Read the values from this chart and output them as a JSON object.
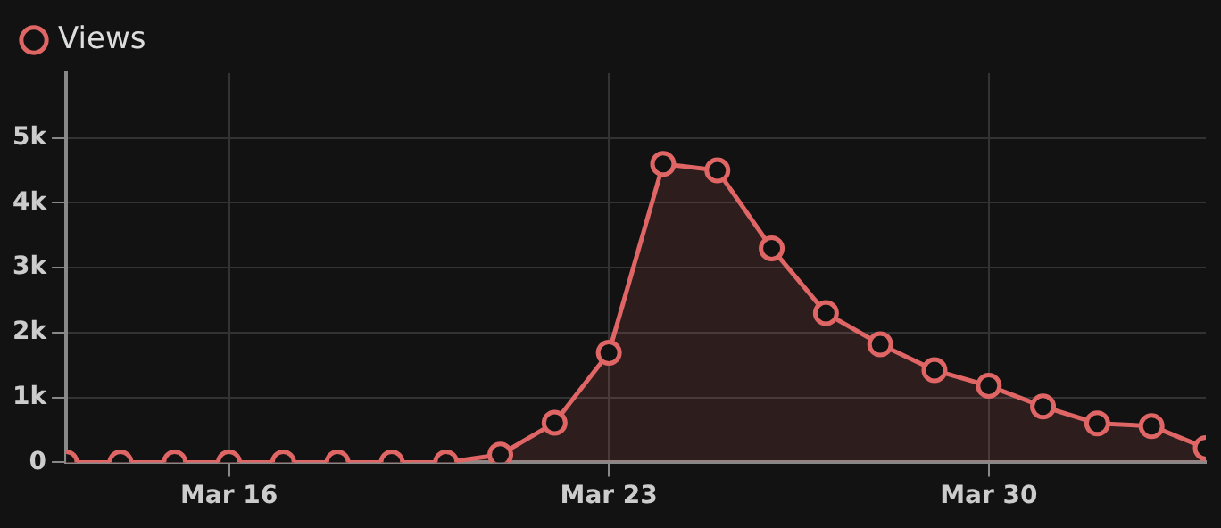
{
  "chart_data": {
    "type": "area",
    "legend": "top left",
    "grid": true,
    "marker": "circle",
    "line_style": "solid",
    "x": [
      "--03-13",
      "--03-14",
      "--03-15",
      "--03-16",
      "--03-17",
      "--03-18",
      "--03-19",
      "--03-20",
      "--03-21",
      "--03-22",
      "--03-23",
      "--03-24",
      "--03-25",
      "--03-26",
      "--03-27",
      "--03-28",
      "--03-29",
      "--03-30",
      "--03-31",
      "--04-01",
      "--04-02",
      "--04-03"
    ],
    "series": [
      {
        "name": "Views",
        "color": "#e06666",
        "values": [
          0,
          0,
          0,
          0,
          0,
          0,
          0,
          0,
          120,
          610,
          1690,
          4600,
          4500,
          3300,
          2300,
          1820,
          1420,
          1180,
          860,
          600,
          560,
          220
        ]
      }
    ],
    "xlim": [
      "--03-13",
      "--04-03"
    ],
    "xticks": [
      {
        "value": "--03-16",
        "label": "Mar 16"
      },
      {
        "value": "--03-23",
        "label": "Mar 23"
      },
      {
        "value": "--03-30",
        "label": "Mar 30"
      }
    ],
    "ylim": [
      0,
      6000
    ],
    "yticks": [
      0,
      {
        "value": 1000,
        "label": "1k"
      },
      {
        "value": 2000,
        "label": "2k"
      },
      {
        "value": 3000,
        "label": "3k"
      },
      {
        "value": 4000,
        "label": "4k"
      },
      {
        "value": 5000,
        "label": "5k"
      }
    ]
  }
}
